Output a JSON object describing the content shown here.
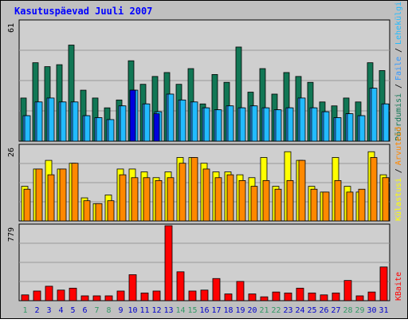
{
  "colors": {
    "background": "#C0C0C0",
    "panel": "#CFCFCF",
    "title": "#0000FF",
    "day_weekday": "#0000CC",
    "day_weekend": "#339966",
    "visits": "#117755",
    "pages": "#3399FF",
    "files": "#22BBFF",
    "hits": "#0000DD",
    "sites": "#FFFF00",
    "visits2": "#FF8800",
    "kbytes": "#FF0000"
  },
  "chart_data": {
    "type": "bar",
    "title": "Kasutuspäevad Juuli 2007",
    "categories": [
      "1",
      "2",
      "3",
      "4",
      "5",
      "6",
      "7",
      "8",
      "9",
      "10",
      "11",
      "12",
      "13",
      "14",
      "15",
      "16",
      "17",
      "18",
      "19",
      "20",
      "21",
      "22",
      "23",
      "24",
      "25",
      "26",
      "27",
      "28",
      "29",
      "30",
      "31"
    ],
    "weekend_days": [
      "1",
      "7",
      "8",
      "14",
      "15",
      "21",
      "22",
      "28",
      "29"
    ],
    "top_panel": {
      "ymax_label": "61",
      "ymax": 61,
      "axis_legend": [
        {
          "text": "Pöördumisi",
          "color": "#117755"
        },
        {
          "text": "Faile",
          "color": "#3399FF"
        },
        {
          "text": "Lehekülgi",
          "color": "#22BBFF"
        }
      ],
      "series": [
        {
          "key": "hits",
          "values": [
            22,
            40,
            38,
            39,
            49,
            26,
            22,
            17,
            21,
            41,
            29,
            33,
            35,
            29,
            37,
            19,
            34,
            30,
            48,
            25,
            37,
            24,
            35,
            33,
            30,
            20,
            18,
            22,
            20,
            40,
            36
          ]
        },
        {
          "key": "files",
          "values": [
            13,
            20,
            22,
            20,
            20,
            13,
            12,
            11,
            18,
            26,
            19,
            15,
            24,
            21,
            20,
            17,
            16,
            18,
            17,
            18,
            17,
            16,
            17,
            22,
            17,
            15,
            12,
            14,
            13,
            27,
            19
          ]
        },
        {
          "key": "pages",
          "values": [
            13,
            20,
            22,
            20,
            20,
            13,
            12,
            11,
            18,
            26,
            19,
            15,
            24,
            21,
            20,
            17,
            16,
            18,
            17,
            18,
            17,
            16,
            17,
            22,
            17,
            15,
            12,
            14,
            13,
            27,
            19
          ]
        },
        {
          "key": "hits_dark",
          "values": [
            0,
            0,
            0,
            0,
            0,
            0,
            0,
            0,
            0,
            26,
            0,
            14,
            0,
            0,
            0,
            0,
            0,
            0,
            0,
            0,
            0,
            0,
            0,
            0,
            0,
            0,
            0,
            0,
            0,
            0,
            0
          ]
        }
      ]
    },
    "mid_panel": {
      "ymax_label": "26",
      "ymax": 26,
      "axis_legend": [
        {
          "text": "Külastusi",
          "color": "#FFFF00"
        },
        {
          "text": "Arvuteid",
          "color": "#FF8800"
        }
      ],
      "series": [
        {
          "key": "sites",
          "values": [
            12,
            18,
            21,
            18,
            20,
            8,
            6,
            9,
            18,
            18,
            17,
            15,
            17,
            22,
            22,
            20,
            17,
            17,
            16,
            15,
            22,
            12,
            24,
            21,
            12,
            10,
            22,
            12,
            10,
            24,
            16
          ]
        },
        {
          "key": "visits2",
          "values": [
            11,
            18,
            16,
            18,
            20,
            7,
            6,
            7,
            16,
            15,
            15,
            14,
            15,
            20,
            22,
            18,
            15,
            16,
            14,
            12,
            14,
            11,
            14,
            21,
            11,
            10,
            14,
            10,
            11,
            22,
            15
          ]
        }
      ]
    },
    "bottom_panel": {
      "ymax_label": "779",
      "ymax": 779,
      "axis_legend": [
        {
          "text": "KBaite",
          "color": "#FF0000"
        }
      ],
      "series": [
        {
          "key": "kbytes",
          "values": [
            60,
            100,
            150,
            110,
            130,
            50,
            50,
            50,
            100,
            270,
            80,
            100,
            779,
            300,
            100,
            110,
            230,
            70,
            200,
            70,
            40,
            90,
            80,
            130,
            80,
            60,
            80,
            210,
            50,
            90,
            350
          ]
        }
      ]
    }
  }
}
